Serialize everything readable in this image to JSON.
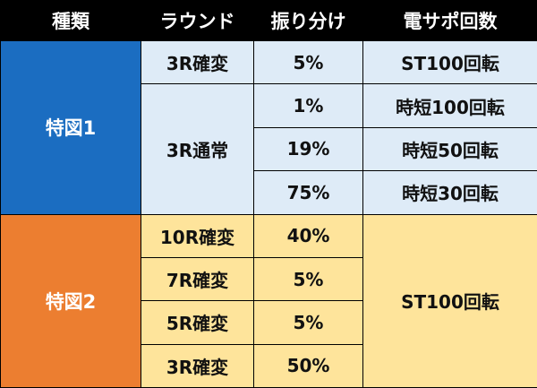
{
  "colors": {
    "header_bg": "#000000",
    "header_text": "#ffffff",
    "kind1_bg": "#1b6dc1",
    "kind2_bg": "#ec7e30",
    "kind1_rows_bg": "#deebf7",
    "kind2_rows_bg": "#fee49b"
  },
  "headers": [
    "種類",
    "ラウンド",
    "振り分け",
    "電サポ回数"
  ],
  "kind1": {
    "label": "特図1",
    "groups": [
      {
        "round": "3R確変",
        "rows": [
          {
            "share": "5%",
            "support": "ST100回転"
          }
        ]
      },
      {
        "round": "3R通常",
        "rows": [
          {
            "share": "1%",
            "support": "時短100回転"
          },
          {
            "share": "19%",
            "support": "時短50回転"
          },
          {
            "share": "75%",
            "support": "時短30回転"
          }
        ]
      }
    ]
  },
  "kind2": {
    "label": "特図2",
    "support": "ST100回転",
    "rows": [
      {
        "round": "10R確変",
        "share": "40%"
      },
      {
        "round": "7R確変",
        "share": "5%"
      },
      {
        "round": "5R確変",
        "share": "5%"
      },
      {
        "round": "3R確変",
        "share": "50%"
      }
    ]
  }
}
